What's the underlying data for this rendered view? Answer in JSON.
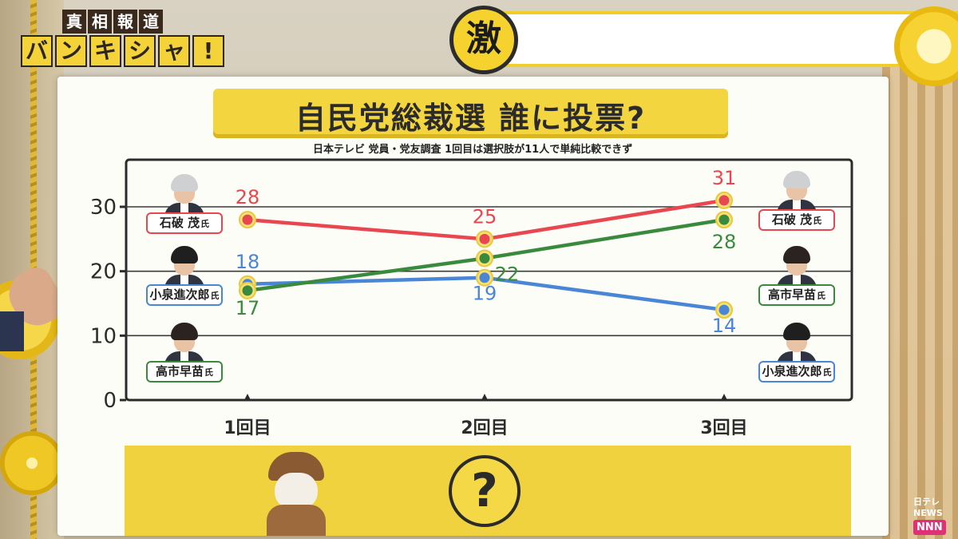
{
  "show": {
    "logo_top": [
      "真",
      "相",
      "報",
      "道"
    ],
    "logo_main": [
      "バ",
      "ン",
      "キ",
      "シ",
      "ャ",
      "!"
    ],
    "topbar_badge": "激"
  },
  "board": {
    "title": "自民党総裁選 誰に投票?",
    "subtitle": "日本テレビ 党員・党友調査 1回目は選択肢が11人で単純比較できず",
    "question_mark": "?"
  },
  "network": {
    "top": "日テレNEWS",
    "badge": "NNN"
  },
  "chart_data": {
    "type": "line",
    "title": "自民党総裁選 誰に投票?",
    "categories": [
      "1回目",
      "2回目",
      "3回目"
    ],
    "ylim": [
      0,
      30
    ],
    "yticks": [
      0,
      10,
      20,
      30
    ],
    "grid": true,
    "series": [
      {
        "name": "石破 茂",
        "suffix": "氏",
        "color": "#e8474f",
        "values": [
          28,
          25,
          31
        ]
      },
      {
        "name": "小泉進次郎",
        "suffix": "氏",
        "color": "#4a86d6",
        "values": [
          18,
          19,
          14
        ]
      },
      {
        "name": "高市早苗",
        "suffix": "氏",
        "color": "#3a8a3e",
        "values": [
          17,
          22,
          28
        ]
      }
    ],
    "left_labels_order": [
      "石破 茂",
      "小泉進次郎",
      "高市早苗"
    ],
    "right_labels_order": [
      "石破 茂",
      "高市早苗",
      "小泉進次郎"
    ]
  }
}
